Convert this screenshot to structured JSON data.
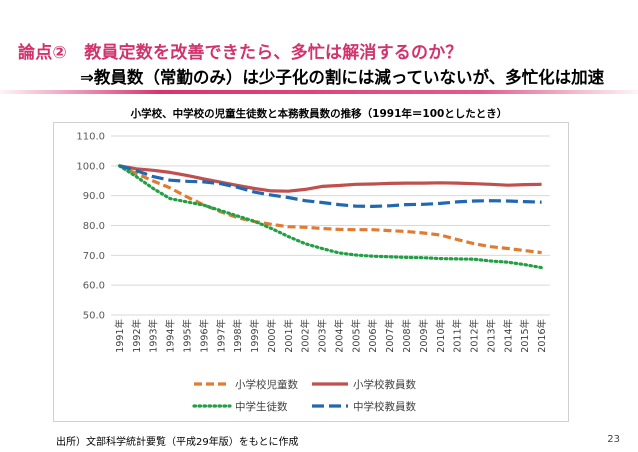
{
  "slide": {
    "heading_line1": "論点②　教員定数を改善できたら、多忙は解消するのか？",
    "heading_line2": "⇒教員数（常勤のみ）は少子化の割には減っていないが、多忙化は加速",
    "source": "出所）文部科学統計要覧（平成29年版）をもとに作成",
    "page_number": "23"
  },
  "chart_data": {
    "type": "line",
    "title": "小学校、中学校の児童生徒数と本務教員数の推移（1991年＝100としたとき）",
    "xlabel": "",
    "ylabel": "",
    "ylim": [
      50,
      110
    ],
    "yticks": [
      "50.0",
      "60.0",
      "70.0",
      "80.0",
      "90.0",
      "100.0",
      "110.0"
    ],
    "grid": true,
    "legend_position": "bottom",
    "categories": [
      "1991年",
      "1992年",
      "1993年",
      "1994年",
      "1995年",
      "1996年",
      "1997年",
      "1998年",
      "1999年",
      "2000年",
      "2001年",
      "2002年",
      "2003年",
      "2004年",
      "2005年",
      "2006年",
      "2007年",
      "2008年",
      "2009年",
      "2010年",
      "2011年",
      "2012年",
      "2013年",
      "2014年",
      "2015年",
      "2016年"
    ],
    "series": [
      {
        "name": "小学校児童数",
        "color": "#e07b32",
        "dash": "dash",
        "values": [
          100.0,
          97.4,
          94.9,
          92.6,
          89.6,
          86.9,
          84.6,
          82.6,
          81.3,
          80.4,
          79.6,
          79.4,
          79.0,
          78.7,
          78.6,
          78.6,
          78.3,
          78.0,
          77.5,
          76.8,
          75.3,
          73.9,
          72.9,
          72.3,
          71.6,
          70.9
        ]
      },
      {
        "name": "小学校教員数",
        "color": "#c0504d",
        "dash": "solid",
        "values": [
          100.0,
          99.0,
          98.5,
          97.8,
          96.8,
          95.6,
          94.5,
          93.4,
          92.4,
          91.6,
          91.5,
          92.1,
          93.1,
          93.4,
          93.8,
          93.9,
          94.1,
          94.2,
          94.2,
          94.3,
          94.2,
          94.0,
          93.8,
          93.5,
          93.7,
          93.8
        ]
      },
      {
        "name": "中学生徒数",
        "color": "#23a046",
        "dash": "dot",
        "values": [
          100.0,
          96.4,
          92.4,
          89.0,
          87.9,
          86.8,
          85.0,
          83.2,
          81.4,
          79.0,
          76.3,
          73.9,
          72.3,
          70.8,
          70.1,
          69.7,
          69.5,
          69.3,
          69.2,
          68.9,
          68.8,
          68.7,
          68.1,
          67.7,
          66.9,
          65.9
        ]
      },
      {
        "name": "中学校教員数",
        "color": "#2068b0",
        "dash": "longdash",
        "values": [
          100.0,
          98.4,
          96.4,
          95.2,
          94.8,
          94.6,
          94.0,
          92.8,
          91.2,
          90.2,
          89.4,
          88.3,
          87.7,
          87.0,
          86.5,
          86.4,
          86.6,
          87.0,
          87.1,
          87.4,
          87.9,
          88.2,
          88.3,
          88.2,
          88.0,
          87.8
        ]
      }
    ]
  }
}
